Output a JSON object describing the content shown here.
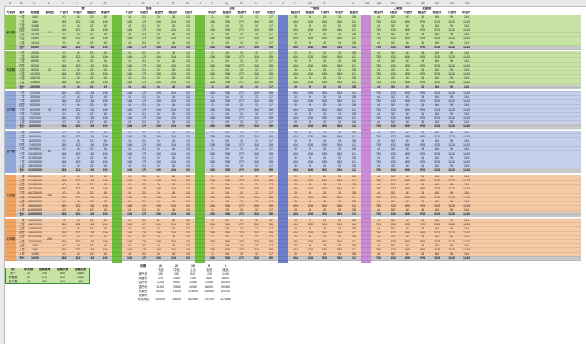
{
  "colors": {
    "green": "#8dc74f",
    "lightgreen": "#c7e3a4",
    "blue": "#92a6d8",
    "lightblue": "#c4cfec",
    "orange": "#f2a464",
    "lightorange": "#f7caa6",
    "grey": "#c8c8c8",
    "stripe_green": "#6fbf3f",
    "stripe_blue": "#6f7fc8",
    "stripe_purple": "#c98ad6",
    "headerbg": "#e9e9e9"
  },
  "col_letters": [
    "A",
    "B",
    "C",
    "D",
    "E",
    "F",
    "G",
    "H",
    "I",
    "J",
    "K",
    "L",
    "M",
    "N",
    "O",
    "P",
    "Q",
    "R",
    "S",
    "T",
    "U",
    "V",
    "W",
    "X",
    "Y",
    "Z",
    "AA",
    "AB",
    "AC",
    "AD",
    "AE",
    "AF",
    "AG",
    "AH"
  ],
  "top_headers": {
    "total": "合",
    "g1": "总装",
    "g2": "总装",
    "g3": "一级装",
    "g4": "二级装",
    "g5": "四级装"
  },
  "sub_headers": {
    "c_realm": "大境界",
    "c_stage": "境界",
    "c_exp": "经验值",
    "c_ratio": "基础比",
    "c1": "下品丹",
    "c2": "中品丹",
    "c3": "极品丹",
    "c4": "绝品丹"
  },
  "realms": [
    {
      "name": "炼气期",
      "stages": [
        "一层",
        "二层",
        "三层",
        "四层",
        "五层",
        "六层",
        "七层"
      ],
      "ratio": "10",
      "total": "合计"
    },
    {
      "name": "筑基期",
      "stages": [
        "一层",
        "二层",
        "三层",
        "四层",
        "五层",
        "六层",
        "七层",
        "八层"
      ],
      "ratio": "20",
      "total": "合计"
    },
    {
      "name": "结丹期",
      "stages": [
        "一层",
        "二层",
        "三层",
        "四层",
        "五层",
        "六层",
        "七层",
        "八层"
      ],
      "ratio": "40",
      "total": "合计"
    },
    {
      "name": "金丹期",
      "stages": [
        "一层",
        "二层",
        "三层",
        "四层",
        "五层",
        "六层",
        "七层",
        "八层",
        "九层"
      ],
      "ratio": "60",
      "total": "合计"
    },
    {
      "name": "元婴期",
      "stages": [
        "一层",
        "二层",
        "三层",
        "四层",
        "五层",
        "六层",
        "七层",
        "八层",
        "九层"
      ],
      "ratio": "100",
      "total": "合计"
    },
    {
      "name": "化神期",
      "stages": [
        "一层",
        "二层",
        "三层",
        "四层",
        "五层",
        "六层",
        "七层",
        "八层",
        "九层"
      ],
      "ratio": "200",
      "total": "合计"
    }
  ],
  "sample_values": {
    "exp": [
      "2400",
      "7866",
      "11580",
      "15490",
      "19760",
      "24560",
      "13104",
      "68400",
      "42000",
      "56280",
      "68950",
      "82320",
      "96200",
      "101520",
      "128700",
      "149600",
      "160000",
      "230400",
      "352000",
      "425000",
      "502000",
      "610400",
      "712000",
      "1001000",
      "2040000",
      "3242000",
      "4030000",
      "5056000",
      "6200000",
      "7400000",
      "9078000",
      "10450000",
      "11990000",
      "15000000",
      "18400000",
      "21030000",
      "25780000",
      "31480000",
      "34180000",
      "39200000",
      "44320000",
      "52090000",
      "98000000",
      "106000000",
      "118000000",
      "129000000",
      "143000000",
      "162000000",
      "178000000",
      "199000000",
      "201000000",
      "1200000000"
    ],
    "nums": [
      "20",
      "18",
      "22",
      "16",
      "14",
      "21",
      "24",
      "28",
      "13",
      "11",
      "19",
      "15",
      "12",
      "17",
      "10",
      "9",
      "26",
      "30",
      "35",
      "44",
      "52",
      "61",
      "78",
      "84",
      "96",
      "104",
      "118",
      "122",
      "136",
      "150",
      "168",
      "176",
      "190",
      "204",
      "220",
      "246",
      "258",
      "272",
      "310",
      "356",
      "404",
      "428",
      "506",
      "534",
      "612",
      "780",
      "832",
      "890",
      "978",
      "1024",
      "1120",
      "1243"
    ]
  },
  "bottom_table": {
    "headers": [
      "阶",
      "木灵根",
      "出现概率",
      "观察次数",
      "观察次数"
    ],
    "rows": [
      [
        "炼气",
        10,
        "240",
        "600",
        "2840"
      ],
      [
        "筑基期",
        20,
        "240",
        "300",
        "1540"
      ],
      [
        "结丹期",
        40,
        "120",
        "240",
        "480"
      ]
    ]
  },
  "summary_table": {
    "headers": [
      "阶数",
      "20",
      "20",
      "15",
      "9",
      "6"
    ],
    "subheaders": [
      "",
      "下品",
      "中品",
      "上品",
      "极品",
      "绝品"
    ],
    "rows": [
      [
        "炼气丹",
        "180",
        "160",
        "540",
        "720",
        "1440"
      ],
      [
        "筑基丹",
        "275",
        "1440",
        "2160",
        "4400",
        "8800"
      ],
      [
        "结丹丹",
        "1740",
        "5960",
        "12960",
        "24450",
        "50100"
      ],
      [
        "金丹丹",
        "11500",
        "23660",
        "34980",
        "68000",
        "90180"
      ],
      [
        "元婴丹",
        "40400",
        "81100",
        "123000",
        "156400",
        "320100"
      ],
      [
        "化神丹",
        "",
        "",
        "",
        "",
        ""
      ],
      [
        "大境界合",
        "154000",
        "306640",
        "952960",
        "737200",
        "1474580"
      ]
    ]
  }
}
